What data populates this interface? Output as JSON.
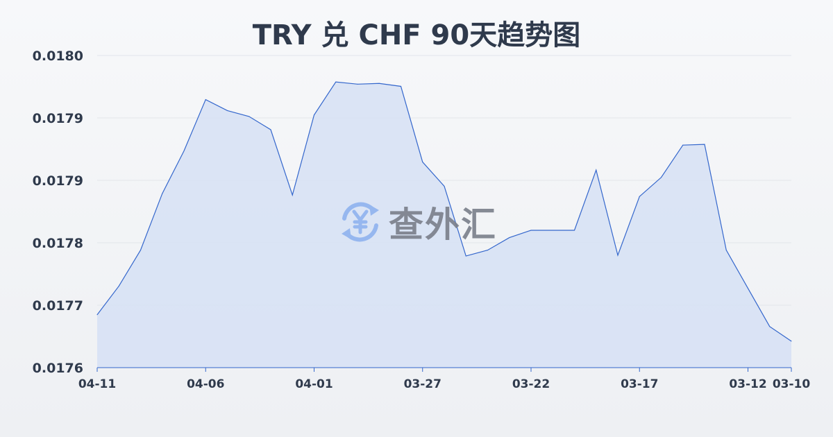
{
  "chart_data": {
    "type": "area",
    "title": "TRY 兑 CHF 90天趋势图",
    "xlabel": "",
    "ylabel": "",
    "ylim": [
      0.0176,
      0.018025
    ],
    "y_tick_labels": [
      "0.0176",
      "0.0177",
      "0.0178",
      "0.0179",
      "0.0179",
      "0.0180"
    ],
    "x_ticks": [
      {
        "index": 0,
        "label": "04-11"
      },
      {
        "index": 5,
        "label": "04-06"
      },
      {
        "index": 10,
        "label": "04-01"
      },
      {
        "index": 15,
        "label": "03-27"
      },
      {
        "index": 20,
        "label": "03-22"
      },
      {
        "index": 25,
        "label": "03-17"
      },
      {
        "index": 30,
        "label": "03-12"
      },
      {
        "index": 32,
        "label": "03-10"
      }
    ],
    "values": [
      0.017672,
      0.017711,
      0.01776,
      0.017837,
      0.017895,
      0.017965,
      0.01795,
      0.017942,
      0.017924,
      0.017835,
      0.017944,
      0.017989,
      0.017986,
      0.017987,
      0.017983,
      0.01788,
      0.017847,
      0.017752,
      0.01776,
      0.017777,
      0.017787,
      0.017787,
      0.017787,
      0.017869,
      0.017753,
      0.017833,
      0.017859,
      0.017903,
      0.017904,
      0.01776,
      0.017708,
      0.017656,
      0.017636
    ],
    "grid": true,
    "legend": "none",
    "colors": {
      "line": "#3366cc",
      "fill": "#d6e0f5",
      "grid": "#e3e6ea",
      "text": "#2f3a4c"
    }
  },
  "watermark": {
    "text": "查外汇",
    "icon": "yen-exchange-icon"
  }
}
